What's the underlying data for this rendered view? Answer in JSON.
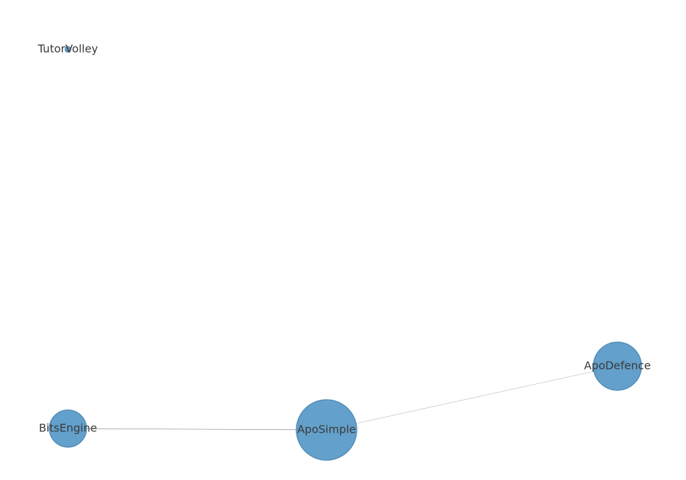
{
  "graph": {
    "nodes": [
      {
        "id": "TutorVolley",
        "label": "TutorVolley",
        "weight": 1
      },
      {
        "id": "BitsEngine",
        "label": "BitsEngine",
        "weight": 3
      },
      {
        "id": "ApoSimple",
        "label": "ApoSimple",
        "weight": 8
      },
      {
        "id": "ApoDefence",
        "label": "ApoDefence",
        "weight": 5
      }
    ],
    "edges": [
      {
        "source": "BitsEngine",
        "target": "ApoSimple"
      },
      {
        "source": "ApoSimple",
        "target": "ApoDefence"
      }
    ],
    "colors": {
      "node": "#5b9bc9",
      "edge": "#8a8a8a"
    }
  }
}
